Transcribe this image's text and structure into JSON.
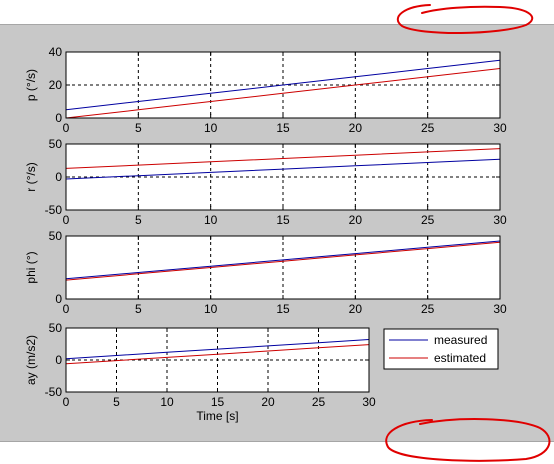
{
  "chart_data": [
    {
      "type": "line",
      "ylabel": "p (°/s)",
      "xlim": [
        0,
        30
      ],
      "ylim": [
        0,
        40
      ],
      "xticks": [
        0,
        5,
        10,
        15,
        20,
        25,
        30
      ],
      "yticks": [
        0,
        20,
        40
      ],
      "grid": true,
      "series": [
        {
          "color": "#0000a0",
          "x": [
            0,
            5,
            10,
            15,
            20,
            25,
            30
          ],
          "y": [
            5.0,
            10.0,
            15.0,
            20.0,
            25.0,
            30.0,
            35.0
          ]
        },
        {
          "color": "#cc0000",
          "x": [
            0,
            5,
            10,
            15,
            20,
            25,
            30
          ],
          "y": [
            0.0,
            5.0,
            10.0,
            15.0,
            20.0,
            25.0,
            30.0
          ]
        }
      ]
    },
    {
      "type": "line",
      "ylabel": "r (°/s)",
      "xlim": [
        0,
        30
      ],
      "ylim": [
        -50,
        50
      ],
      "xticks": [
        0,
        5,
        10,
        15,
        20,
        25,
        30
      ],
      "yticks": [
        -50,
        0,
        50
      ],
      "grid": true,
      "series": [
        {
          "color": "#0000a0",
          "x": [
            0,
            5,
            10,
            15,
            20,
            25,
            30
          ],
          "y": [
            -3,
            2,
            7,
            12,
            17,
            22,
            27
          ]
        },
        {
          "color": "#cc0000",
          "x": [
            0,
            5,
            10,
            15,
            20,
            25,
            30
          ],
          "y": [
            13,
            18,
            23,
            28,
            33,
            38,
            43
          ]
        }
      ]
    },
    {
      "type": "line",
      "ylabel": "phi (°)",
      "xlim": [
        0,
        30
      ],
      "ylim": [
        0,
        50
      ],
      "xticks": [
        0,
        5,
        10,
        15,
        20,
        25,
        30
      ],
      "yticks": [
        0,
        50
      ],
      "grid": true,
      "series": [
        {
          "color": "#0000a0",
          "x": [
            0,
            5,
            10,
            15,
            20,
            25,
            30
          ],
          "y": [
            16,
            21,
            26,
            31,
            36,
            41,
            46
          ]
        },
        {
          "color": "#cc0000",
          "x": [
            0,
            5,
            10,
            15,
            20,
            25,
            30
          ],
          "y": [
            15,
            20,
            25,
            30,
            35,
            40,
            45
          ]
        }
      ]
    },
    {
      "type": "line",
      "ylabel": "ay (m/s2)",
      "xlabel": "Time [s]",
      "xlim": [
        0,
        30
      ],
      "ylim": [
        -50,
        50
      ],
      "xticks": [
        0,
        5,
        10,
        15,
        20,
        25,
        30
      ],
      "yticks": [
        -50,
        0,
        50
      ],
      "grid": true,
      "series": [
        {
          "color": "#0000a0",
          "x": [
            0,
            5,
            10,
            15,
            20,
            25,
            30
          ],
          "y": [
            2,
            7,
            12,
            17,
            22,
            27,
            32
          ]
        },
        {
          "color": "#cc0000",
          "x": [
            0,
            5,
            10,
            15,
            20,
            25,
            30
          ],
          "y": [
            -6,
            -1,
            4,
            9,
            14,
            19,
            24
          ]
        }
      ]
    }
  ],
  "legend": {
    "entries": [
      {
        "label": "measured",
        "color": "#0000a0"
      },
      {
        "label": "estimated",
        "color": "#cc0000"
      }
    ]
  },
  "annotation_color": "#e00000"
}
